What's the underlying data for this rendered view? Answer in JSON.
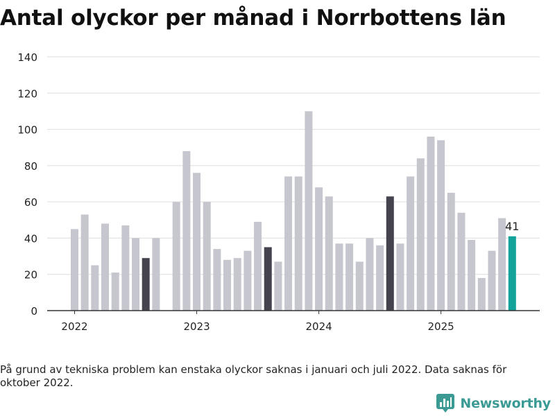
{
  "title": "Antal olyckor per månad i Norrbottens län",
  "note": "På grund av tekniska problem kan enstaka olyckor saknas i januari och juli 2022. Data saknas för oktober 2022.",
  "logo": {
    "text": "Newsworthy",
    "icon": "newsworthy-logo-icon"
  },
  "colors": {
    "bar": "#c6c6ce",
    "highlight": "#45444e",
    "latest": "#13a39a",
    "grid": "#dddddd",
    "axis": "#333333",
    "text": "#222222"
  },
  "chart_data": {
    "type": "bar",
    "title": "Antal olyckor per månad i Norrbottens län",
    "xlabel": "",
    "ylabel": "",
    "ylim": [
      0,
      140
    ],
    "yticks": [
      "0",
      "20",
      "40",
      "60",
      "80",
      "100",
      "120",
      "140"
    ],
    "xticks": [
      {
        "label": "2022",
        "index": 0
      },
      {
        "label": "2023",
        "index": 12
      },
      {
        "label": "2024",
        "index": 24
      },
      {
        "label": "2025",
        "index": 36
      }
    ],
    "grid": true,
    "categories": [
      "2022-01",
      "2022-02",
      "2022-03",
      "2022-04",
      "2022-05",
      "2022-06",
      "2022-07",
      "2022-08",
      "2022-09",
      "2022-10",
      "2022-11",
      "2022-12",
      "2023-01",
      "2023-02",
      "2023-03",
      "2023-04",
      "2023-05",
      "2023-06",
      "2023-07",
      "2023-08",
      "2023-09",
      "2023-10",
      "2023-11",
      "2023-12",
      "2024-01",
      "2024-02",
      "2024-03",
      "2024-04",
      "2024-05",
      "2024-06",
      "2024-07",
      "2024-08",
      "2024-09",
      "2024-10",
      "2024-11",
      "2024-12",
      "2025-01",
      "2025-02",
      "2025-03",
      "2025-04",
      "2025-05",
      "2025-06",
      "2025-07",
      "2025-08"
    ],
    "values": [
      45,
      53,
      25,
      48,
      21,
      47,
      40,
      29,
      40,
      null,
      60,
      88,
      76,
      60,
      34,
      28,
      29,
      33,
      49,
      35,
      27,
      74,
      74,
      110,
      68,
      63,
      37,
      37,
      27,
      40,
      36,
      63,
      37,
      74,
      84,
      96,
      94,
      65,
      54,
      39,
      18,
      33,
      51,
      41
    ],
    "highlight": [
      "2022-08",
      "2023-08",
      "2024-08"
    ],
    "latest": "2025-08",
    "annotations": [
      {
        "category": "2025-08",
        "text": "41"
      }
    ]
  }
}
